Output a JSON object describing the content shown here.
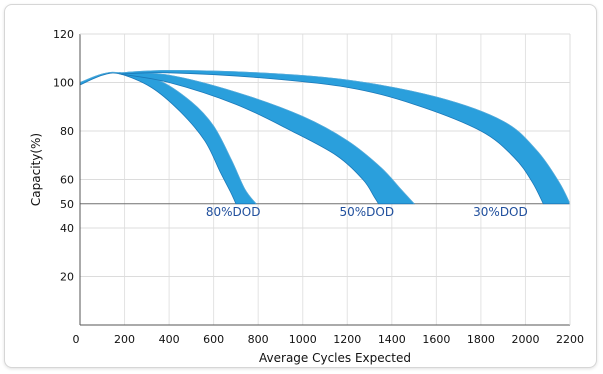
{
  "chart_data": {
    "type": "area",
    "title": "",
    "xlabel": "Average Cycles Expected",
    "ylabel": "Capacity(%)",
    "xlim": [
      0,
      2200
    ],
    "ylim": [
      0,
      120
    ],
    "x_ticks": [
      "0",
      "200",
      "400",
      "600",
      "800",
      "1000",
      "1200",
      "1400",
      "1600",
      "1800",
      "2000",
      "2200"
    ],
    "y_ticks": [
      "20",
      "40",
      "50",
      "60",
      "80",
      "100",
      "120"
    ],
    "grid": true,
    "band_color": "#2a9fdc",
    "band_edge_color": "#1a78b8",
    "label_color": "#1f4e9c",
    "series": [
      {
        "name": "80% DOD",
        "upper": [
          [
            0,
            100
          ],
          [
            100,
            103.5
          ],
          [
            180,
            104
          ],
          [
            350,
            101
          ],
          [
            500,
            92
          ],
          [
            600,
            82
          ],
          [
            680,
            68
          ],
          [
            740,
            56
          ],
          [
            790,
            50
          ]
        ],
        "lower": [
          [
            0,
            99
          ],
          [
            100,
            103
          ],
          [
            180,
            103.5
          ],
          [
            320,
            98
          ],
          [
            450,
            88
          ],
          [
            560,
            76
          ],
          [
            630,
            63
          ],
          [
            675,
            55
          ],
          [
            700,
            50
          ]
        ]
      },
      {
        "name": "50% DOD",
        "upper": [
          [
            180,
            104
          ],
          [
            400,
            103
          ],
          [
            700,
            96
          ],
          [
            1000,
            86
          ],
          [
            1200,
            76
          ],
          [
            1350,
            65
          ],
          [
            1440,
            56
          ],
          [
            1500,
            50
          ]
        ],
        "lower": [
          [
            180,
            103.5
          ],
          [
            400,
            100
          ],
          [
            700,
            91
          ],
          [
            950,
            80
          ],
          [
            1150,
            70
          ],
          [
            1270,
            60
          ],
          [
            1320,
            53
          ],
          [
            1340,
            50
          ]
        ]
      },
      {
        "name": "30% DOD",
        "upper": [
          [
            180,
            104
          ],
          [
            400,
            105
          ],
          [
            800,
            104
          ],
          [
            1200,
            101
          ],
          [
            1600,
            94
          ],
          [
            1900,
            84
          ],
          [
            2050,
            72
          ],
          [
            2150,
            59
          ],
          [
            2200,
            50
          ]
        ],
        "lower": [
          [
            180,
            103.5
          ],
          [
            400,
            104
          ],
          [
            800,
            102
          ],
          [
            1200,
            98
          ],
          [
            1500,
            91
          ],
          [
            1800,
            80
          ],
          [
            1950,
            69
          ],
          [
            2030,
            59
          ],
          [
            2080,
            50
          ]
        ]
      }
    ],
    "series_labels": [
      {
        "text": "80%DOD",
        "x": 800,
        "y": 45
      },
      {
        "text": "50%DOD",
        "x": 1400,
        "y": 45
      },
      {
        "text": "30%DOD",
        "x": 2000,
        "y": 45
      }
    ]
  }
}
